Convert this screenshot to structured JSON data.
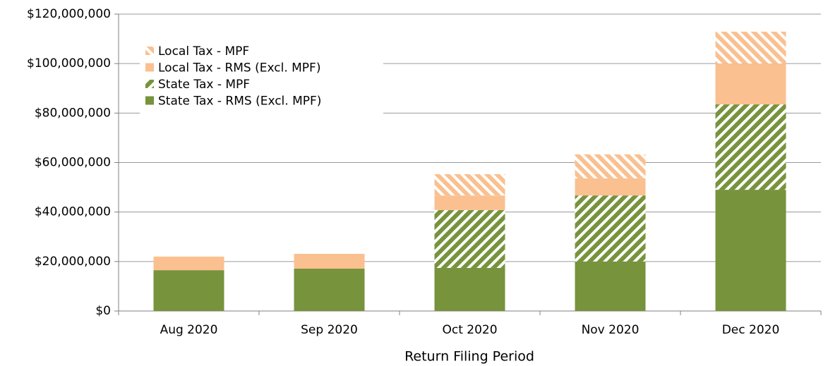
{
  "chart_data": {
    "type": "stacked_bar",
    "x_label": "Return Filing Period",
    "categories": [
      "Aug 2020",
      "Sep 2020",
      "Oct 2020",
      "Nov 2020",
      "Dec 2020"
    ],
    "series": [
      {
        "name": "State Tax - RMS (Excl. MPF)",
        "color": "#77933c",
        "pattern": "solid",
        "values": [
          16500000,
          17100000,
          17400000,
          20000000,
          49000000
        ]
      },
      {
        "name": "State Tax - MPF",
        "color": "#77933c",
        "pattern": "hatch",
        "values": [
          0,
          0,
          23400000,
          26700000,
          34500000
        ]
      },
      {
        "name": "Local Tax - RMS (Excl. MPF)",
        "color": "#fac090",
        "pattern": "solid",
        "values": [
          5500000,
          6000000,
          5900000,
          6900000,
          16500000
        ]
      },
      {
        "name": "Local Tax - MPF",
        "color": "#fac090",
        "pattern": "hatch",
        "values": [
          0,
          0,
          8600000,
          9700000,
          12900000
        ]
      }
    ],
    "ylim": [
      0,
      120000000
    ],
    "yticks": [
      {
        "value": 0,
        "label": "$0"
      },
      {
        "value": 20000000,
        "label": "$20,000,000"
      },
      {
        "value": 40000000,
        "label": "$40,000,000"
      },
      {
        "value": 60000000,
        "label": "$60,000,000"
      },
      {
        "value": 80000000,
        "label": "$80,000,000"
      },
      {
        "value": 100000000,
        "label": "$100,000,000"
      },
      {
        "value": 120000000,
        "label": "$120,000,000"
      }
    ],
    "grid": true,
    "legend": "upper left"
  }
}
